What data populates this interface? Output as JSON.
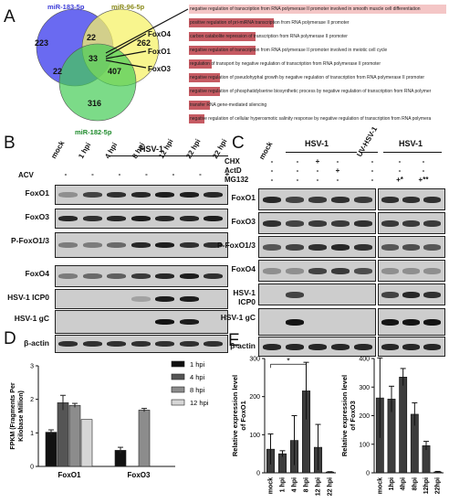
{
  "panels": {
    "a": "A",
    "b": "B",
    "c": "C",
    "d": "D",
    "e": "E"
  },
  "venn": {
    "sets": [
      "miR-183-5p",
      "miR-96-5p",
      "miR-182-5p"
    ],
    "counts": {
      "only183": "223",
      "only96": "262",
      "only182": "316",
      "s183_96": "22",
      "s183_182": "22",
      "s96_182": "407",
      "all": "33"
    },
    "targets": [
      "FoxO4",
      "FoxO1",
      "FoxO3"
    ],
    "colors": {
      "set1": "#4b4bf5",
      "set2": "#f3f25a",
      "set3": "#3fcf52"
    }
  },
  "go_terms": [
    {
      "label": "negative regulation of transcription from RNA polymerase II promoter involved in smooth muscle cell differentiation",
      "fill": 1.0,
      "color": "#f4c6c6"
    },
    {
      "label": "positive regulation of pri-miRNA transcription from RNA polymerase II promoter",
      "fill": 0.33
    },
    {
      "label": "carbon catabolite repression of transcription from RNA polymerase II promoter",
      "fill": 0.26
    },
    {
      "label": "negative regulation of transcription from RNA polymerase II promoter involved in meiotic cell cycle",
      "fill": 0.26
    },
    {
      "label": "regulation of transport by negative regulation of transcription from RNA polymerase II promoter",
      "fill": 0.09
    },
    {
      "label": "negative regulation of pseudohyphal growth by negative regulation of transcription from RNA polymerase II promoter",
      "fill": 0.12
    },
    {
      "label": "negative regulation of phosphatidylserine biosynthetic process by negative regulation of transcription from RNA polymer",
      "fill": 0.12
    },
    {
      "label": "transfer RNA gene-mediated silencing",
      "fill": 0.08
    },
    {
      "label": "negative regulation of cellular hyperosmotic salinity response by negative regulation of transcription from RNA polymera",
      "fill": 0.06
    }
  ],
  "blot_b": {
    "virus": "HSV-1",
    "lanes": [
      "mock",
      "1 hpi",
      "4 hpi",
      "8 hpi",
      "12 hpi",
      "22 hpi",
      "22 hpi"
    ],
    "acv_label": "ACV",
    "acv": [
      "-",
      "-",
      "-",
      "-",
      "-",
      "-",
      "+"
    ],
    "rows": [
      "FoxO1",
      "FoxO3",
      "P-FoxO1/3",
      "FoxO4",
      "HSV-1 ICP0",
      "HSV-1 gC",
      "β-actin"
    ]
  },
  "blot_c": {
    "mock": "mock",
    "groups": [
      "HSV-1",
      "UV-HSV-1",
      "HSV-1"
    ],
    "treatments": [
      {
        "label": "CHX",
        "values": [
          "-",
          "-",
          "+",
          "-",
          "-",
          "-",
          "-"
        ]
      },
      {
        "label": "ActD",
        "values": [
          "-",
          "-",
          "-",
          "+",
          "-",
          "-",
          "-"
        ]
      },
      {
        "label": "MG132",
        "values": [
          "-",
          "-",
          "-",
          "-",
          "-",
          "+*",
          "+**"
        ]
      }
    ],
    "rows": [
      "FoxO1",
      "FoxO3",
      "P-FoxO1/3",
      "FoxO4",
      "HSV-1 ICP0",
      "HSV-1 gC",
      "β-actin"
    ]
  },
  "chart_data": [
    {
      "type": "bar",
      "ylabel": "FPKM (Fragments Per Kilobase Million)",
      "categories": [
        "FoxO1",
        "FoxO3"
      ],
      "ylim": [
        0,
        3
      ],
      "yticks": [
        "0",
        "1",
        "2",
        "3"
      ],
      "series": [
        {
          "name": "1 hpi",
          "values": [
            1.02,
            0.48
          ],
          "errors": [
            0.07,
            0.09
          ],
          "color": "#111111"
        },
        {
          "name": "4 hpi",
          "values": [
            1.9,
            null
          ],
          "errors": [
            0.22,
            null
          ],
          "color": "#555555"
        },
        {
          "name": "8 hpi",
          "values": [
            1.82,
            1.68
          ],
          "errors": [
            0.06,
            0.05
          ],
          "color": "#8c8c8c"
        },
        {
          "name": "12 hpi",
          "values": [
            1.4,
            null
          ],
          "errors": [
            0,
            null
          ],
          "color": "#d6d6d6"
        }
      ]
    },
    {
      "type": "bar",
      "ylabel": "Relative expression level of FoxO1",
      "categories": [
        "mock",
        "1 hpi",
        "4 hpi",
        "8 hpi",
        "12 hpi",
        "22 hpi"
      ],
      "values": [
        62,
        50,
        85,
        215,
        67,
        2
      ],
      "errors": [
        40,
        8,
        65,
        75,
        60,
        1
      ],
      "ylim": [
        0,
        300
      ],
      "yticks": [
        "0",
        "100",
        "200",
        "300"
      ],
      "annotation": "*"
    },
    {
      "type": "bar",
      "ylabel": "Relative expression level of FoxO3",
      "categories": [
        "mock",
        "1hpi",
        "4hpi",
        "8hpi",
        "12hpi",
        "22hpi"
      ],
      "values": [
        262,
        258,
        335,
        205,
        95,
        3
      ],
      "errors": [
        140,
        45,
        30,
        40,
        15,
        2
      ],
      "ylim": [
        0,
        400
      ],
      "yticks": [
        "0",
        "100",
        "200",
        "300",
        "400"
      ]
    }
  ]
}
